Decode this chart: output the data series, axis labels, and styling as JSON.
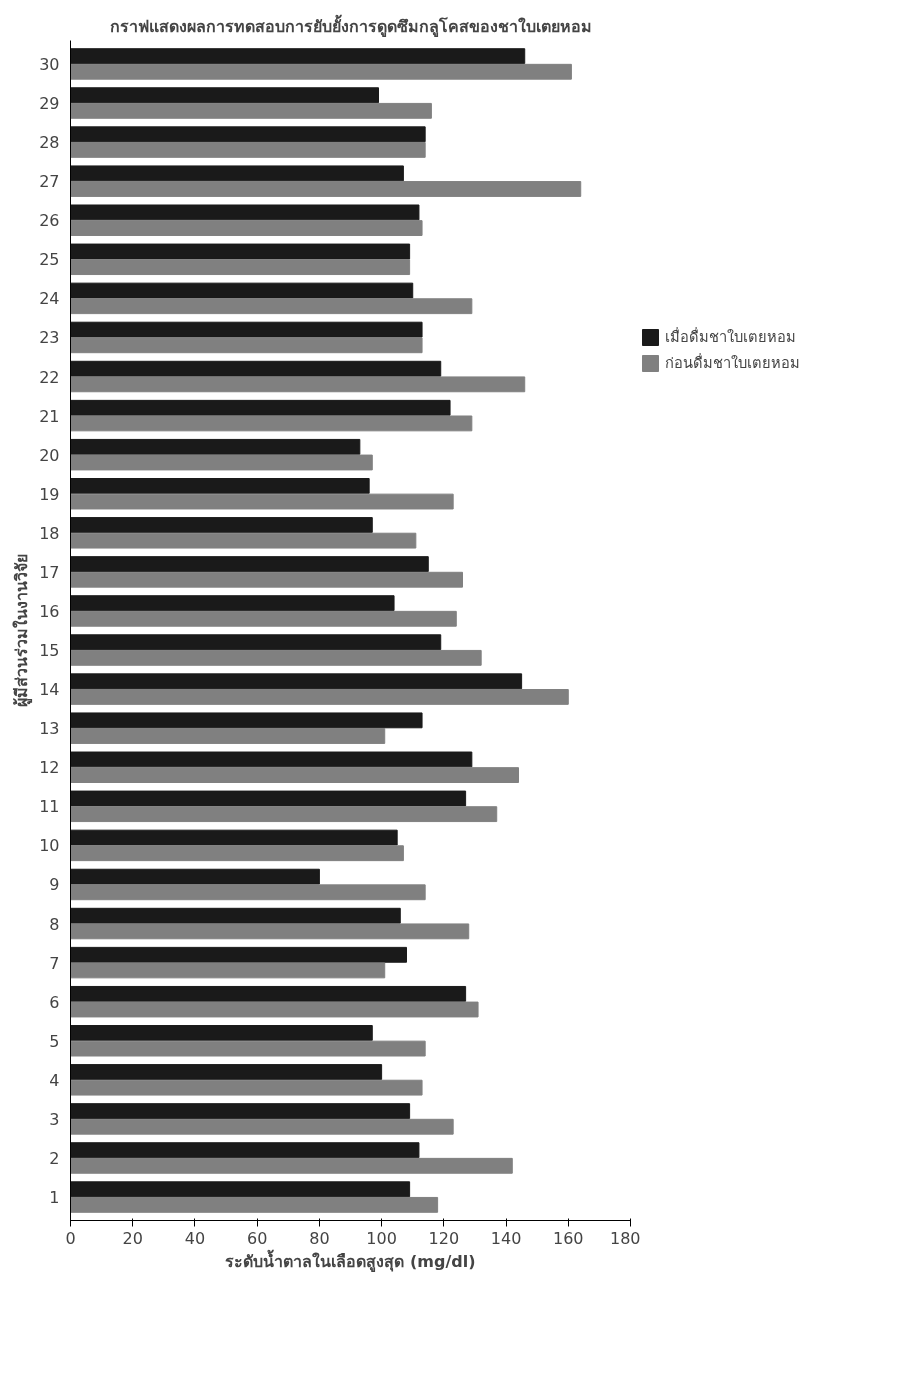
{
  "chart_data": {
    "type": "bar",
    "orientation": "horizontal",
    "title": "กราฟแสดงผลการทดสอบการยับยั้งการดูดซึมกลูโคสของชาใบเตยหอม",
    "xlabel": "ระดับน้ำตาลในเลือดสูงสุด (mg/dl)",
    "ylabel": "ผู้มีส่วนร่วมในงานวิจัย",
    "categories": [
      "30",
      "29",
      "28",
      "27",
      "26",
      "25",
      "24",
      "23",
      "22",
      "21",
      "20",
      "19",
      "18",
      "17",
      "16",
      "15",
      "14",
      "13",
      "12",
      "11",
      "10",
      "9",
      "8",
      "7",
      "6",
      "5",
      "4",
      "3",
      "2",
      "1"
    ],
    "series": [
      {
        "name": "เมื่อดื่มชาใบเตยหอม",
        "color": "#1a1a1a",
        "values": [
          146,
          99,
          114,
          107,
          112,
          109,
          110,
          113,
          119,
          122,
          93,
          96,
          97,
          115,
          104,
          119,
          145,
          113,
          129,
          127,
          105,
          80,
          106,
          108,
          127,
          97,
          100,
          109,
          112,
          109
        ]
      },
      {
        "name": "ก่อนดื่มชาใบเตยหอม",
        "color": "#808080",
        "values": [
          161,
          116,
          114,
          164,
          113,
          109,
          129,
          113,
          146,
          129,
          97,
          123,
          111,
          126,
          124,
          132,
          160,
          101,
          144,
          137,
          107,
          114,
          128,
          101,
          131,
          114,
          113,
          123,
          142,
          118
        ]
      }
    ],
    "xlim": [
      0,
      180
    ],
    "xticks": [
      0,
      20,
      40,
      60,
      80,
      100,
      120,
      140,
      160,
      180
    ],
    "legend": "right"
  }
}
